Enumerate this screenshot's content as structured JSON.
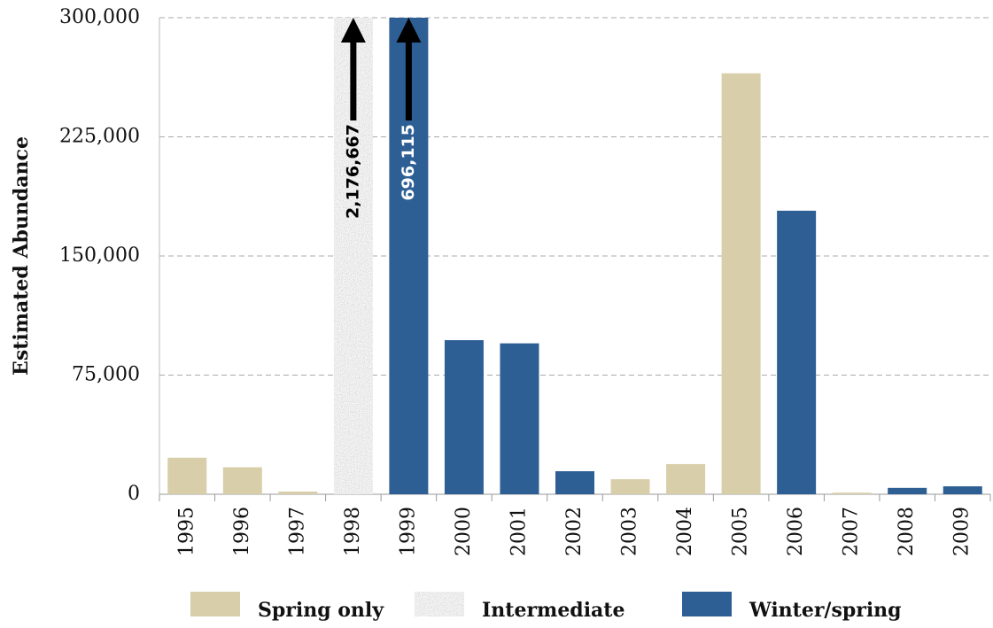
{
  "chart_data": {
    "type": "bar",
    "y_label": "Estimated Abundance",
    "categories": [
      "1995",
      "1996",
      "1997",
      "1998",
      "1999",
      "2000",
      "2001",
      "2002",
      "2003",
      "2004",
      "2005",
      "2006",
      "2007",
      "2008",
      "2009"
    ],
    "series": [
      {
        "name": "Spring only",
        "color": "#d8cfaa",
        "values": [
          23000,
          17000,
          1700,
          null,
          null,
          null,
          null,
          null,
          9500,
          19000,
          265000,
          null,
          1000,
          null,
          null
        ]
      },
      {
        "name": "Intermediate",
        "color": "#a9a9a9",
        "texture": "speckled",
        "values": [
          null,
          null,
          null,
          2176667,
          null,
          null,
          null,
          null,
          null,
          null,
          null,
          null,
          null,
          null,
          null
        ],
        "value_labels": [
          null,
          null,
          null,
          "2,176,667",
          null,
          null,
          null,
          null,
          null,
          null,
          null,
          null,
          null,
          null,
          null
        ]
      },
      {
        "name": "Winter/spring",
        "color": "#2e5f94",
        "values": [
          null,
          null,
          null,
          null,
          696115,
          97000,
          95000,
          14500,
          null,
          null,
          null,
          178500,
          null,
          4000,
          5000
        ],
        "value_labels": [
          null,
          null,
          null,
          null,
          "696,115",
          null,
          null,
          null,
          null,
          null,
          null,
          null,
          null,
          null,
          null
        ]
      }
    ],
    "ylim": [
      0,
      300000
    ],
    "yticks": [
      0,
      {
        "value": 75000,
        "label": "75,000"
      },
      {
        "value": 150000,
        "label": "150,000"
      },
      {
        "value": 225000,
        "label": "225,000"
      },
      {
        "value": 300000,
        "label": "300,000"
      }
    ],
    "grid": true
  }
}
